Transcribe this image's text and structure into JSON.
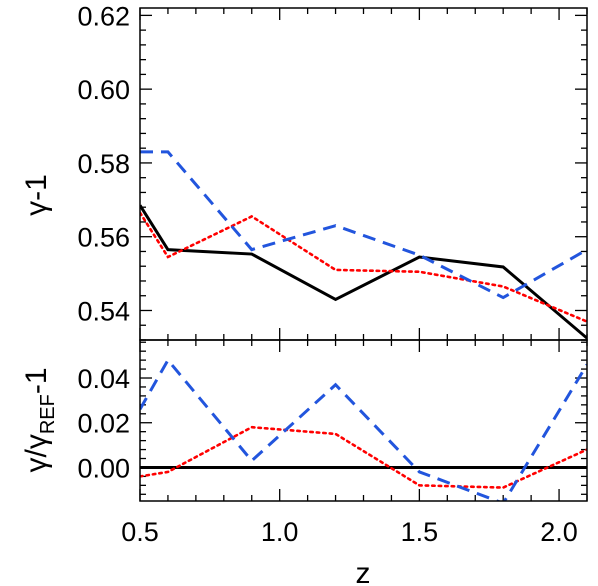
{
  "chart_data": [
    {
      "type": "line",
      "panel": "top",
      "ylabel": "γ-1",
      "xlim": [
        0.5,
        2.1
      ],
      "ylim": [
        0.532,
        0.622
      ],
      "yticks": [
        "0.54",
        "0.56",
        "0.58",
        "0.60",
        "0.62"
      ],
      "ytick_values": [
        0.54,
        0.56,
        0.58,
        0.6,
        0.62
      ],
      "series": [
        {
          "style": "solid",
          "color": "#000000",
          "x": [
            0.5,
            0.6,
            0.9,
            1.2,
            1.5,
            1.8,
            2.1
          ],
          "y": [
            0.5685,
            0.5565,
            0.5553,
            0.543,
            0.5545,
            0.5518,
            0.5325
          ]
        },
        {
          "style": "dotted",
          "color": "#ff0000",
          "x": [
            0.5,
            0.6,
            0.9,
            1.2,
            1.5,
            1.8,
            2.1
          ],
          "y": [
            0.5665,
            0.5545,
            0.5655,
            0.551,
            0.5505,
            0.5465,
            0.537
          ]
        },
        {
          "style": "dashed",
          "color": "#2255dd",
          "x": [
            0.5,
            0.6,
            0.9,
            1.2,
            1.5,
            1.8,
            2.1
          ],
          "y": [
            0.583,
            0.583,
            0.5565,
            0.563,
            0.555,
            0.5435,
            0.5565
          ]
        }
      ]
    },
    {
      "type": "line",
      "panel": "bottom",
      "ylabel_main": "γ/γ",
      "ylabel_sub": "REF",
      "ylabel_end": "-1",
      "xlabel": "z",
      "xlim": [
        0.5,
        2.1
      ],
      "ylim": [
        -0.015,
        0.057
      ],
      "xticks": [
        "0.5",
        "1.0",
        "1.5",
        "2.0"
      ],
      "xtick_values": [
        0.5,
        1.0,
        1.5,
        2.0
      ],
      "yticks": [
        "0.00",
        "0.02",
        "0.04"
      ],
      "ytick_values": [
        0.0,
        0.02,
        0.04
      ],
      "series": [
        {
          "style": "solid",
          "color": "#000000",
          "x": [
            0.5,
            0.6,
            0.9,
            1.2,
            1.5,
            1.8,
            2.1
          ],
          "y": [
            0.0,
            0.0,
            0.0,
            0.0,
            0.0,
            0.0,
            0.0
          ]
        },
        {
          "style": "dotted",
          "color": "#ff0000",
          "x": [
            0.5,
            0.6,
            0.9,
            1.2,
            1.5,
            1.8,
            2.1
          ],
          "y": [
            -0.004,
            -0.002,
            0.018,
            0.015,
            -0.008,
            -0.009,
            0.008
          ]
        },
        {
          "style": "dashed",
          "color": "#2255dd",
          "x": [
            0.5,
            0.6,
            0.9,
            1.2,
            1.5,
            1.8,
            2.1
          ],
          "y": [
            0.026,
            0.048,
            0.003,
            0.037,
            -0.002,
            -0.016,
            0.046
          ]
        }
      ]
    }
  ]
}
